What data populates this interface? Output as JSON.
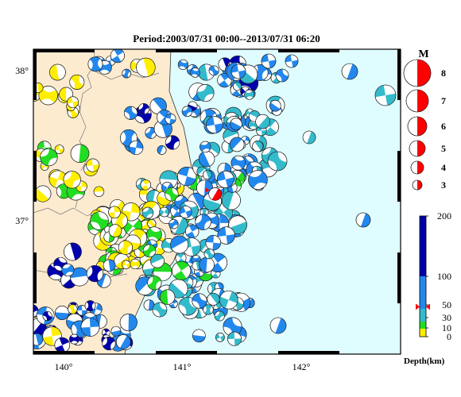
{
  "title": "Period:2003/07/31 00:00--2013/07/31 06:20",
  "lon_labels": [
    "140°",
    "141°",
    "142°"
  ],
  "lat_labels": [
    "38°",
    "37°"
  ],
  "magnitude_legend": {
    "header": "M",
    "levels": [
      "8",
      "7",
      "6",
      "5",
      "4",
      "3"
    ]
  },
  "depth_legend": {
    "label": "Depth(km)",
    "ticks": [
      "200",
      "100",
      "50",
      "30",
      "10",
      "0"
    ],
    "colors": {
      "shallow": "#ffee00",
      "mid_shallow": "#22dd22",
      "mid": "#33bbcc",
      "deep": "#2288ee",
      "deepest": "#0000aa"
    }
  },
  "colors": {
    "land": "#fdebd0",
    "sea": "#dffcff",
    "main_event": "#ff0000",
    "legend_ball": "#ff0000"
  },
  "map_extent": {
    "lon_min": 139.8,
    "lon_max": 142.75,
    "lat_min": 36.1,
    "lat_max": 38.1
  },
  "main_event": {
    "lon": 141.26,
    "lat": 37.15,
    "depth_km": 47
  }
}
